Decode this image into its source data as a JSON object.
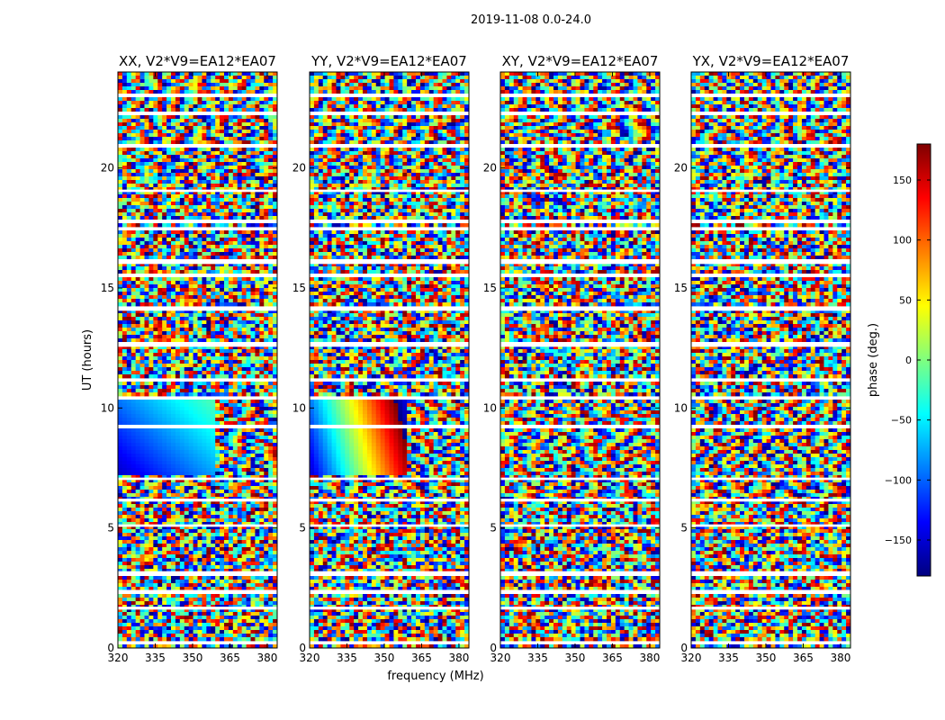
{
  "figure": {
    "suptitle": "2019-11-08 0.0-24.0",
    "xlabel": "frequency (MHz)",
    "ylabel": "UT (hours)"
  },
  "chart_data": {
    "type": "heatmap",
    "title": "2019-11-08 0.0-24.0",
    "xlabel": "frequency (MHz)",
    "ylabel": "UT (hours)",
    "xlim": [
      320,
      384
    ],
    "ylim": [
      0,
      24
    ],
    "x_ticks": [
      "320",
      "335",
      "350",
      "365",
      "380"
    ],
    "y_ticks": [
      "0",
      "5",
      "10",
      "15",
      "20"
    ],
    "panels": [
      {
        "title": "XX, V2*V9=EA12*EA07",
        "polarization": "XX"
      },
      {
        "title": "YY, V2*V9=EA12*EA07",
        "polarization": "YY"
      },
      {
        "title": "XY, V2*V9=EA12*EA07",
        "polarization": "XY"
      },
      {
        "title": "YX, V2*V9=EA12*EA07",
        "polarization": "YX"
      }
    ],
    "colorbar": {
      "label": "phase (deg.)",
      "range": [
        -180,
        180
      ],
      "ticks": [
        "150",
        "100",
        "50",
        "0",
        "−50",
        "−100",
        "−150"
      ],
      "colormap": [
        "#00007f",
        "#0000ff",
        "#007fff",
        "#00ffff",
        "#7fff7f",
        "#ffff00",
        "#ff7f00",
        "#ff0000",
        "#7f0000"
      ]
    },
    "blank_time_gaps_hours": [
      [
        0.15,
        0.25
      ],
      [
        1.6,
        1.72
      ],
      [
        2.3,
        2.42
      ],
      [
        3.05,
        3.2
      ],
      [
        5.05,
        5.15
      ],
      [
        6.1,
        6.22
      ],
      [
        7.0,
        7.1
      ],
      [
        9.2,
        9.3
      ],
      [
        10.35,
        10.45
      ],
      [
        11.1,
        11.2
      ],
      [
        12.55,
        12.75
      ],
      [
        14.05,
        14.2
      ],
      [
        15.5,
        15.6
      ],
      [
        16.0,
        16.2
      ],
      [
        17.4,
        17.52
      ],
      [
        17.7,
        17.85
      ],
      [
        19.0,
        19.1
      ],
      [
        20.85,
        21.0
      ],
      [
        22.25,
        22.35
      ],
      [
        23.0,
        23.1
      ]
    ]
  }
}
